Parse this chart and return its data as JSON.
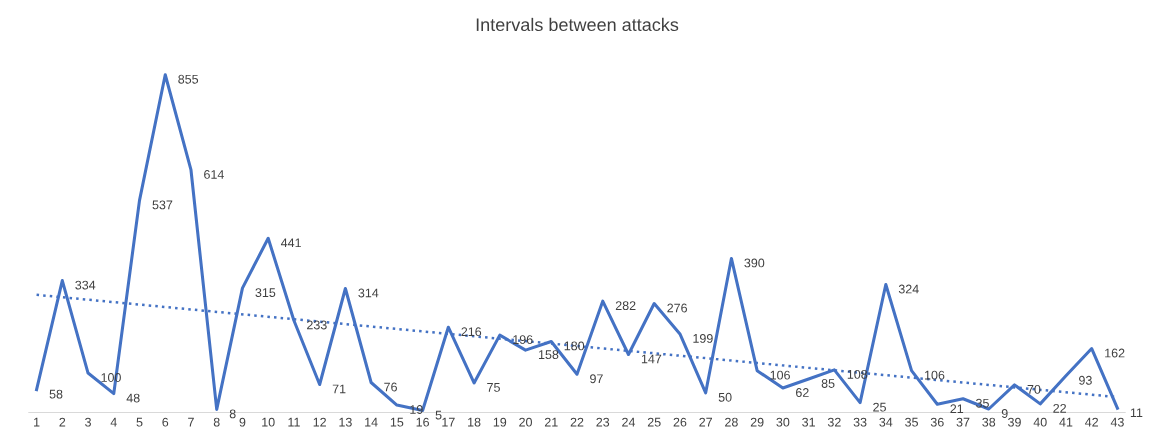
{
  "chart_data": {
    "type": "line",
    "title": "Intervals between attacks",
    "categories": [
      "1",
      "2",
      "3",
      "4",
      "5",
      "6",
      "7",
      "8",
      "9",
      "10",
      "11",
      "12",
      "13",
      "14",
      "15",
      "16",
      "17",
      "18",
      "19",
      "20",
      "21",
      "22",
      "23",
      "24",
      "25",
      "26",
      "27",
      "28",
      "29",
      "30",
      "31",
      "32",
      "33",
      "34",
      "35",
      "36",
      "37",
      "38",
      "39",
      "40",
      "41",
      "42",
      "43"
    ],
    "series": [
      {
        "color": "#4472c4",
        "line_style": "solid",
        "values": [
          58,
          334,
          100,
          48,
          537,
          855,
          614,
          8,
          315,
          441,
          233,
          71,
          314,
          76,
          19,
          5,
          216,
          75,
          196,
          158,
          180,
          97,
          282,
          147,
          276,
          199,
          50,
          390,
          106,
          62,
          85,
          108,
          25,
          324,
          106,
          21,
          35,
          9,
          70,
          22,
          93,
          162,
          11
        ],
        "value_labels": [
          "58",
          "334",
          "100",
          "48",
          "537",
          "855",
          "614",
          "8",
          "315",
          "441",
          "233",
          "71",
          "314",
          "76",
          "19",
          "5",
          "216",
          "75",
          "196",
          "158",
          "180",
          "97",
          "282",
          "147",
          "276",
          "199",
          "50",
          "390",
          "106",
          "62",
          "85",
          "108",
          "25",
          "324",
          "106",
          "21",
          "35",
          "9",
          "70",
          "22",
          "93",
          "162",
          "11"
        ]
      },
      {
        "type": "line",
        "color": "#4472c4",
        "line_style": "dotted",
        "x": [
          "1",
          "43"
        ],
        "values": [
          298,
          39
        ],
        "value_labels": [
          null,
          null
        ]
      }
    ],
    "grid": false,
    "legend": false,
    "marker": "none",
    "tick_labels": "x"
  }
}
